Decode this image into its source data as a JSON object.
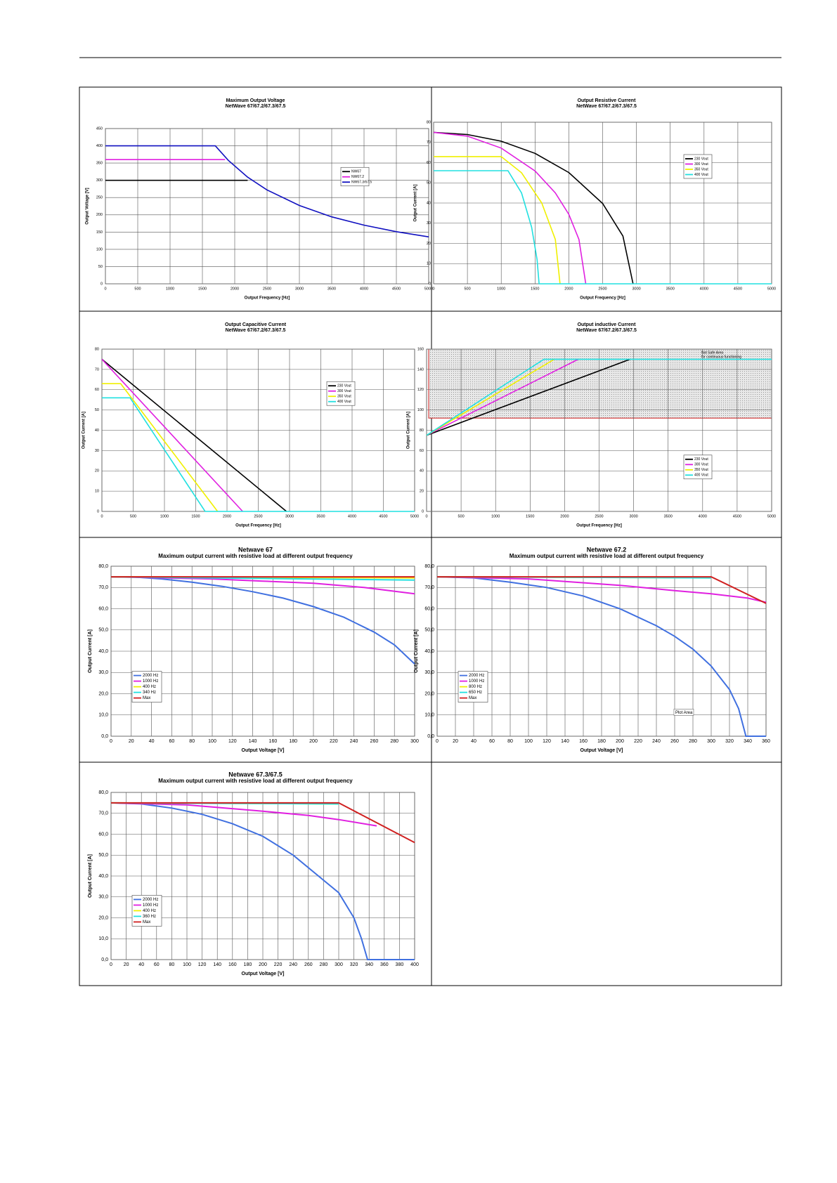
{
  "chart_data": [
    {
      "type": "line",
      "title": "Maximum Output Voltage",
      "subtitle": "NetWave 67/67.2/67.3/67.5",
      "xlabel": "Output Frequency [Hz]",
      "ylabel": "Output Voltage [V]",
      "xlim": [
        0,
        5000
      ],
      "xticks": [
        0,
        500,
        1000,
        1500,
        2000,
        2500,
        3000,
        3500,
        4000,
        4500,
        5000
      ],
      "ylim": [
        0,
        450
      ],
      "yticks": [
        0,
        50,
        100,
        150,
        200,
        250,
        300,
        350,
        400,
        450
      ],
      "grid": true,
      "legend": "center right",
      "series": [
        {
          "name": "NW67",
          "color": "#000000",
          "x": [
            0,
            2200
          ],
          "values": [
            300,
            300
          ]
        },
        {
          "name": "NW67.2",
          "color": "#e020e0",
          "x": [
            0,
            1850
          ],
          "values": [
            360,
            360
          ]
        },
        {
          "name": "NW67.3/67.5",
          "color": "#1010c0",
          "x": [
            0,
            1700,
            1900,
            2200,
            2500,
            3000,
            3500,
            4000,
            4500,
            5000
          ],
          "values": [
            400,
            400,
            358,
            309,
            272,
            227,
            194,
            170,
            151,
            136
          ]
        }
      ]
    },
    {
      "type": "line",
      "title": "Output Resistive Current",
      "subtitle": "NetWave 67/67.2/67.3/67.5",
      "xlabel": "Output Frequency [Hz]",
      "ylabel": "Output Current [A]",
      "xlim": [
        0,
        5000
      ],
      "xticks": [
        0,
        500,
        1000,
        1500,
        2000,
        2500,
        3000,
        3500,
        4000,
        4500,
        5000
      ],
      "ylim": [
        0,
        80
      ],
      "yticks": [
        0,
        10,
        20,
        30,
        40,
        50,
        60,
        70,
        80
      ],
      "grid": true,
      "legend": "upper right",
      "series": [
        {
          "name": "230 Vout",
          "color": "#000000",
          "x": [
            0,
            500,
            1000,
            1500,
            2000,
            2500,
            2800,
            2950
          ],
          "values": [
            75,
            73.9,
            70.6,
            64.6,
            55.1,
            39.8,
            23.6,
            0
          ]
        },
        {
          "name": "300 Vout",
          "color": "#e020e0",
          "x": [
            0,
            500,
            1000,
            1500,
            1800,
            2000,
            2150,
            2250
          ],
          "values": [
            75,
            73.1,
            67.2,
            55.9,
            45,
            34.4,
            22,
            0
          ]
        },
        {
          "name": "350 Vout",
          "color": "#f0f000",
          "x": [
            0,
            1000,
            1300,
            1600,
            1800,
            1870
          ],
          "values": [
            63,
            63,
            55,
            40,
            22,
            0
          ]
        },
        {
          "name": "400 Vout",
          "color": "#20e0e0",
          "x": [
            0,
            1100,
            1300,
            1450,
            1530,
            1560,
            5000
          ],
          "values": [
            56,
            56,
            45,
            28,
            12,
            0,
            0
          ]
        }
      ]
    },
    {
      "type": "line",
      "title": "Output Capacitive Current",
      "subtitle": "NetWave 67/67.2/67.3/67.5",
      "xlabel": "Output Frequency [Hz]",
      "ylabel": "Output Current [A]",
      "xlim": [
        0,
        5000
      ],
      "xticks": [
        0,
        500,
        1000,
        1500,
        2000,
        2500,
        3000,
        3500,
        4000,
        4500,
        5000
      ],
      "ylim": [
        0,
        80
      ],
      "yticks": [
        0,
        10,
        20,
        30,
        40,
        50,
        60,
        70,
        80
      ],
      "grid": true,
      "legend": "upper right",
      "series": [
        {
          "name": "230 Vout",
          "color": "#000000",
          "x": [
            0,
            2950
          ],
          "values": [
            75,
            0
          ]
        },
        {
          "name": "300 Vout",
          "color": "#e020e0",
          "x": [
            0,
            2250
          ],
          "values": [
            75,
            0
          ]
        },
        {
          "name": "350 Vout",
          "color": "#f0f000",
          "x": [
            0,
            300,
            1850
          ],
          "values": [
            63,
            63,
            0
          ]
        },
        {
          "name": "400 Vout",
          "color": "#20e0e0",
          "x": [
            0,
            450,
            1650,
            5000
          ],
          "values": [
            56,
            56,
            0,
            0
          ]
        }
      ]
    },
    {
      "type": "line",
      "title": "Output inductive Current",
      "subtitle": "NetWave 67/67.2/67.3/67.5",
      "xlabel": "Output Frequency [Hz]",
      "ylabel": "Output Current [A]",
      "xlim": [
        0,
        5000
      ],
      "xticks": [
        0,
        500,
        1000,
        1500,
        2000,
        2500,
        3000,
        3500,
        4000,
        4500,
        5000
      ],
      "ylim": [
        0,
        160
      ],
      "yticks": [
        0,
        20,
        40,
        60,
        80,
        100,
        120,
        140,
        160
      ],
      "grid": true,
      "legend": "lower right",
      "region": {
        "y": [
          92,
          160
        ],
        "labels": [
          "Not Safe Area",
          "for continuous functioning"
        ]
      },
      "series": [
        {
          "name": "230 Vout",
          "color": "#000000",
          "x": [
            0,
            2950
          ],
          "values": [
            75,
            150
          ]
        },
        {
          "name": "300 Vout",
          "color": "#e020e0",
          "x": [
            0,
            2200
          ],
          "values": [
            75,
            150
          ]
        },
        {
          "name": "350 Vout",
          "color": "#f0f000",
          "x": [
            0,
            1850
          ],
          "values": [
            75,
            150
          ]
        },
        {
          "name": "400 Vout",
          "color": "#20e0e0",
          "x": [
            0,
            1700,
            5000
          ],
          "values": [
            75,
            150,
            150
          ]
        }
      ]
    },
    {
      "type": "line",
      "title": "Netwave 67",
      "subtitle": "Maximum output current with resistive load at different output frequency",
      "xlabel": "Output Voltage [V]",
      "ylabel": "Output Current [A]",
      "xlim": [
        0,
        300
      ],
      "xticks": [
        0,
        20,
        40,
        60,
        80,
        100,
        120,
        140,
        160,
        180,
        200,
        220,
        240,
        260,
        280,
        300
      ],
      "ylim": [
        0,
        80
      ],
      "yticks": [
        {
          "value": 0,
          "label": "0,0"
        },
        {
          "value": 10,
          "label": "10,0"
        },
        {
          "value": 20,
          "label": "20,0"
        },
        {
          "value": 30,
          "label": "30,0"
        },
        {
          "value": 40,
          "label": "40,0"
        },
        {
          "value": 50,
          "label": "50,0"
        },
        {
          "value": 60,
          "label": "60,0"
        },
        {
          "value": 70,
          "label": "70,0"
        },
        {
          "value": 80,
          "label": "80,0"
        }
      ],
      "grid": true,
      "legend": "lower left",
      "series": [
        {
          "name": "2000 Hz",
          "color": "#4070e0",
          "x": [
            0,
            20,
            50,
            80,
            110,
            140,
            170,
            200,
            230,
            260,
            280,
            300
          ],
          "values": [
            75,
            75,
            74,
            72.5,
            70.5,
            68,
            65,
            61,
            56,
            49,
            43,
            34
          ]
        },
        {
          "name": "1000 Hz",
          "color": "#e020e0",
          "x": [
            0,
            100,
            150,
            200,
            250,
            300
          ],
          "values": [
            75,
            74,
            73,
            72,
            70,
            67
          ]
        },
        {
          "name": "400 Hz",
          "color": "#f0f000",
          "x": [
            0,
            300
          ],
          "values": [
            75,
            74.5
          ]
        },
        {
          "name": "340 Hz",
          "color": "#20e0e0",
          "x": [
            0,
            300
          ],
          "values": [
            75,
            73.5
          ]
        },
        {
          "name": "Max",
          "color": "#d02020",
          "x": [
            0,
            300
          ],
          "values": [
            75,
            75
          ]
        }
      ]
    },
    {
      "type": "line",
      "title": "Netwave 67.2",
      "subtitle": "Maximum output current with resistive load at different output frequency",
      "xlabel": "Output Voltage [V]",
      "ylabel": "Output Current [A]",
      "xlim": [
        0,
        360
      ],
      "xticks": [
        0,
        20,
        40,
        60,
        80,
        100,
        120,
        140,
        160,
        180,
        200,
        220,
        240,
        260,
        280,
        300,
        320,
        340,
        360
      ],
      "ylim": [
        0,
        80
      ],
      "yticks": [
        {
          "value": 0,
          "label": "0,0"
        },
        {
          "value": 10,
          "label": "10,0"
        },
        {
          "value": 20,
          "label": "20,0"
        },
        {
          "value": 30,
          "label": "30,0"
        },
        {
          "value": 40,
          "label": "40,0"
        },
        {
          "value": 50,
          "label": "50,0"
        },
        {
          "value": 60,
          "label": "60,0"
        },
        {
          "value": 70,
          "label": "70,0"
        },
        {
          "value": 80,
          "label": "80,0"
        }
      ],
      "grid": true,
      "legend": "lower left",
      "annotations": [
        "Plot Area"
      ],
      "series": [
        {
          "name": "2000 Hz",
          "color": "#4070e0",
          "x": [
            0,
            40,
            80,
            120,
            160,
            200,
            240,
            260,
            280,
            300,
            320,
            330,
            338,
            360
          ],
          "values": [
            75,
            74.5,
            72.5,
            70,
            66,
            60,
            52,
            47,
            41,
            33,
            22,
            13,
            0,
            0
          ]
        },
        {
          "name": "1000 Hz",
          "color": "#e020e0",
          "x": [
            0,
            100,
            200,
            260,
            300,
            340,
            360
          ],
          "values": [
            75,
            74,
            71,
            68.5,
            67,
            65,
            63
          ]
        },
        {
          "name": "800 Hz",
          "color": "#f0f000",
          "x": [
            0,
            300
          ],
          "values": [
            75,
            74.5
          ]
        },
        {
          "name": "650 Hz",
          "color": "#20e0e0",
          "x": [
            0,
            300
          ],
          "values": [
            75,
            74.5
          ]
        },
        {
          "name": "Max",
          "color": "#d02020",
          "x": [
            0,
            300,
            360
          ],
          "values": [
            75,
            75,
            62.5
          ]
        }
      ]
    },
    {
      "type": "line",
      "title": "Netwave 67.3/67.5",
      "subtitle": "Maximum output current with resistive load at different output frequency",
      "xlabel": "Output Voltage [V]",
      "ylabel": "Output Current [A]",
      "xlim": [
        0,
        400
      ],
      "xticks": [
        0,
        20,
        40,
        60,
        80,
        100,
        120,
        140,
        160,
        180,
        200,
        220,
        240,
        260,
        280,
        300,
        320,
        340,
        360,
        380,
        400
      ],
      "ylim": [
        0,
        80
      ],
      "yticks": [
        {
          "value": 0,
          "label": "0,0"
        },
        {
          "value": 10,
          "label": "10,0"
        },
        {
          "value": 20,
          "label": "20,0"
        },
        {
          "value": 30,
          "label": "30,0"
        },
        {
          "value": 40,
          "label": "40,0"
        },
        {
          "value": 50,
          "label": "50,0"
        },
        {
          "value": 60,
          "label": "60,0"
        },
        {
          "value": 70,
          "label": "70,0"
        },
        {
          "value": 80,
          "label": "80,0"
        }
      ],
      "grid": true,
      "legend": "lower left",
      "series": [
        {
          "name": "2000 Hz",
          "color": "#4070e0",
          "x": [
            0,
            40,
            80,
            120,
            160,
            200,
            240,
            280,
            300,
            320,
            330,
            338,
            400
          ],
          "values": [
            75,
            74.5,
            72.5,
            69.5,
            65,
            59,
            50,
            38,
            32,
            20,
            10,
            0,
            0
          ]
        },
        {
          "name": "1000 Hz",
          "color": "#e020e0",
          "x": [
            0,
            100,
            200,
            260,
            300,
            350
          ],
          "values": [
            75,
            74,
            71,
            69,
            67,
            64
          ]
        },
        {
          "name": "400 Hz",
          "color": "#f0f000",
          "x": [
            0,
            300
          ],
          "values": [
            75,
            74.5
          ]
        },
        {
          "name": "360 Hz",
          "color": "#20e0e0",
          "x": [
            0,
            300
          ],
          "values": [
            75,
            74.5
          ]
        },
        {
          "name": "Max",
          "color": "#d02020",
          "x": [
            0,
            300,
            400
          ],
          "values": [
            75,
            75,
            56
          ]
        }
      ]
    }
  ]
}
